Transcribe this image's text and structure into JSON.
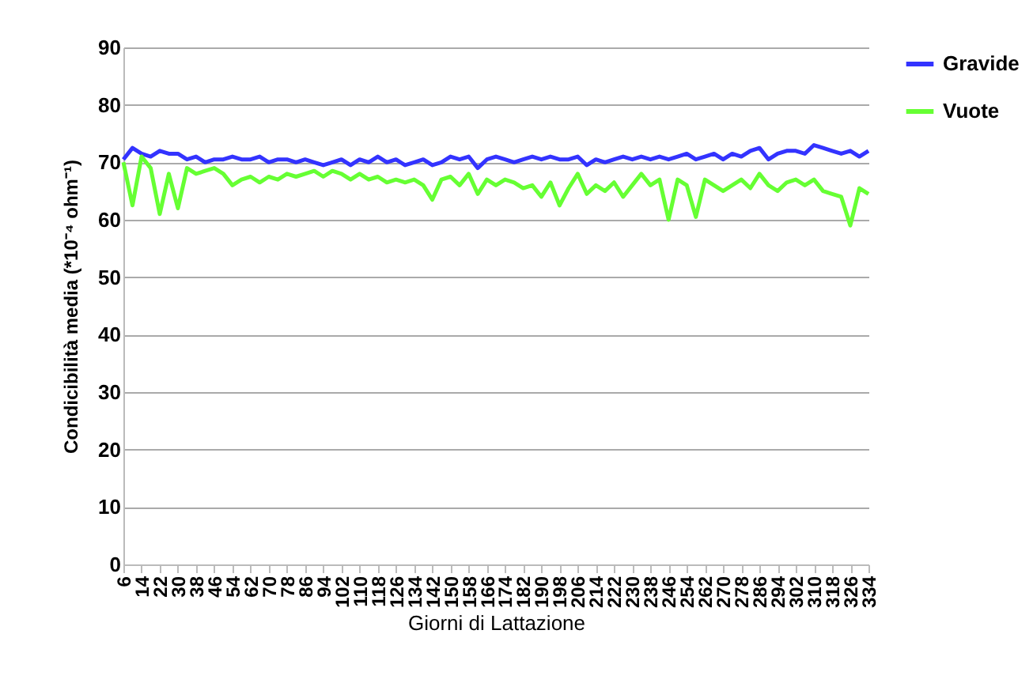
{
  "chart_data": {
    "type": "line",
    "xlabel": "Giorni di Lattazione",
    "ylabel": "Condicibilità media (*10⁻⁴ ohm⁻¹)",
    "x": [
      6,
      10,
      14,
      18,
      22,
      26,
      30,
      34,
      38,
      42,
      46,
      50,
      54,
      58,
      62,
      66,
      70,
      74,
      78,
      82,
      86,
      90,
      94,
      98,
      102,
      106,
      110,
      114,
      118,
      122,
      126,
      130,
      134,
      138,
      142,
      146,
      150,
      154,
      158,
      162,
      166,
      170,
      174,
      178,
      182,
      186,
      190,
      194,
      198,
      202,
      206,
      210,
      214,
      218,
      222,
      226,
      230,
      234,
      238,
      242,
      246,
      250,
      254,
      258,
      262,
      266,
      270,
      274,
      278,
      282,
      286,
      290,
      294,
      298,
      302,
      306,
      310,
      314,
      318,
      322,
      326,
      330,
      334
    ],
    "series": [
      {
        "name": "Gravide",
        "color": "#3333ff",
        "values": [
          70.5,
          72.5,
          71.5,
          71,
          72,
          71.5,
          71.5,
          70.5,
          71,
          70,
          70.5,
          70.5,
          71,
          70.5,
          70.5,
          71,
          70,
          70.5,
          70.5,
          70,
          70.5,
          70,
          69.5,
          70,
          70.5,
          69.5,
          70.5,
          70,
          71,
          70,
          70.5,
          69.5,
          70,
          70.5,
          69.5,
          70,
          71,
          70.5,
          71,
          69,
          70.5,
          71,
          70.5,
          70,
          70.5,
          71,
          70.5,
          71,
          70.5,
          70.5,
          71,
          69.5,
          70.5,
          70,
          70.5,
          71,
          70.5,
          71,
          70.5,
          71,
          70.5,
          71,
          71.5,
          70.5,
          71,
          71.5,
          70.5,
          71.5,
          71,
          72,
          72.5,
          70.5,
          71.5,
          72,
          72,
          71.5,
          73,
          72.5,
          72,
          71.5,
          72,
          71,
          72
        ]
      },
      {
        "name": "Vuote",
        "color": "#66ff33",
        "values": [
          70,
          62.5,
          71,
          69,
          61,
          68,
          62,
          69,
          68,
          68.5,
          69,
          68,
          66,
          67,
          67.5,
          66.5,
          67.5,
          67,
          68,
          67.5,
          68,
          68.5,
          67.5,
          68.5,
          68,
          67,
          68,
          67,
          67.5,
          66.5,
          67,
          66.5,
          67,
          66,
          63.5,
          67,
          67.5,
          66,
          68,
          64.5,
          67,
          66,
          67,
          66.5,
          65.5,
          66,
          64,
          66.5,
          62.5,
          65.5,
          68,
          64.5,
          66,
          65,
          66.5,
          64,
          66,
          68,
          66,
          67,
          60,
          67,
          66,
          60.5,
          67,
          66,
          65,
          66,
          67,
          65.5,
          68,
          66,
          65,
          66.5,
          67,
          66,
          67,
          65,
          64.5,
          64,
          59,
          65.5,
          64.5
        ]
      }
    ],
    "xlim": [
      6,
      334
    ],
    "xticks": [
      6,
      14,
      22,
      30,
      38,
      46,
      54,
      62,
      70,
      78,
      86,
      94,
      102,
      110,
      118,
      126,
      134,
      142,
      150,
      158,
      166,
      174,
      182,
      190,
      198,
      206,
      214,
      222,
      230,
      238,
      246,
      254,
      262,
      270,
      278,
      286,
      294,
      302,
      310,
      318,
      326,
      334
    ],
    "ylim": [
      0,
      90
    ],
    "yticks": [
      0,
      10,
      20,
      30,
      40,
      50,
      60,
      70,
      80,
      90
    ],
    "grid": "y",
    "legend": "right",
    "marker": "none",
    "line_style": "solid"
  }
}
